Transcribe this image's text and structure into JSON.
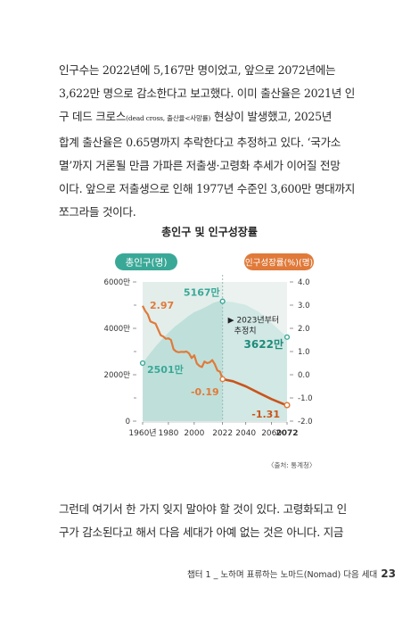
{
  "paragraph1": [
    "인구수는 2022년에 5,167만 명이었고, 앞으로 2072년에는",
    "3,622만 명으로 감소한다고 보고했다. 이미 출산율은 2021년 인",
    "구 데드 크로스",
    "(dead cross, 출산율<사망률)",
    " 현상이 발생했고, 2025년",
    "합계 출산율은 0.65명까지 추락한다고 추정하고 있다. ‘국가소",
    "멸’까지 거론될 만큼 가파른 저출생·고령화 추세가 이어질 전망",
    "이다. 앞으로 저출생으로 인해 1977년 수준인 3,600만 명대까지",
    "쪼그라들 것이다."
  ],
  "chart_title": "총인구 및 인구성장률",
  "chart_data": {
    "type": "area+line",
    "left_axis_label": "총인구(명)",
    "right_axis_label": "인구성장률(%)(명)",
    "left_ticks": [
      "6000만",
      "4000만",
      "2000만",
      "0"
    ],
    "left_tick_values": [
      6000,
      4000,
      2000,
      0
    ],
    "right_ticks": [
      "4.0",
      "3.0",
      "2.0",
      "1.0",
      "0.0",
      "-1.0",
      "-2.0"
    ],
    "right_tick_values": [
      4.0,
      3.0,
      2.0,
      1.0,
      0.0,
      -1.0,
      -2.0
    ],
    "x_ticks": [
      "1960년",
      "1980",
      "2000",
      "2022",
      "2040",
      "2060",
      "2072"
    ],
    "x_tick_values": [
      1960,
      1980,
      2000,
      2022,
      2040,
      2060,
      2072
    ],
    "population": {
      "name": "총인구",
      "unit": "만 명",
      "x": [
        1960,
        1965,
        1970,
        1975,
        1980,
        1985,
        1990,
        1995,
        2000,
        2005,
        2010,
        2015,
        2020,
        2022,
        2030,
        2040,
        2050,
        2060,
        2070,
        2072
      ],
      "y": [
        2501,
        2870,
        3224,
        3528,
        3812,
        4081,
        4287,
        4509,
        4701,
        4819,
        4955,
        5102,
        5184,
        5167,
        5131,
        5006,
        4711,
        4230,
        3718,
        3622
      ],
      "color": "#bfe0da"
    },
    "growth_rate": {
      "name": "인구성장률",
      "unit": "%",
      "x": [
        1960,
        1962,
        1964,
        1966,
        1968,
        1970,
        1972,
        1974,
        1976,
        1978,
        1980,
        1982,
        1984,
        1986,
        1988,
        1990,
        1992,
        1994,
        1996,
        1998,
        2000,
        2002,
        2004,
        2006,
        2008,
        2010,
        2012,
        2014,
        2016,
        2018,
        2020,
        2022,
        2030,
        2040,
        2050,
        2060,
        2070,
        2072
      ],
      "y": [
        2.97,
        2.75,
        2.6,
        2.3,
        2.25,
        2.2,
        1.95,
        1.7,
        1.65,
        1.55,
        1.57,
        1.5,
        1.1,
        1.0,
        0.97,
        0.99,
        0.98,
        1.0,
        0.92,
        0.72,
        0.84,
        0.49,
        0.38,
        0.33,
        0.57,
        0.5,
        0.53,
        0.63,
        0.45,
        0.18,
        0.13,
        -0.19,
        -0.28,
        -0.5,
        -0.78,
        -1.05,
        -1.28,
        -1.31
      ],
      "color": "#d9682b"
    },
    "projection_start_year": 2022,
    "projection_label": "▶ 2023년부터\n추정치",
    "annotations": {
      "rate_1960": "2.97",
      "pop_1960": "2501만",
      "pop_2022": "5167만",
      "rate_2022": "-0.19",
      "pop_2072": "3622만",
      "rate_2072": "-1.31"
    },
    "teal": "#3aa897",
    "teal_dark": "#1f8b7b",
    "orange": "#e07a3a"
  },
  "source": "〈출처: 통계청〉",
  "paragraph2": [
    "그런데 여기서 한 가지 잊지 말아야 할 것이 있다. 고령화되고 인",
    "구가 감소된다고 해서 다음 세대가 아예 없는 것은 아니다. 지금"
  ],
  "footer": {
    "text": "챕터 1 _ 노하며 표류하는 노마드(Nomad) 다음 세대",
    "page": "23"
  }
}
